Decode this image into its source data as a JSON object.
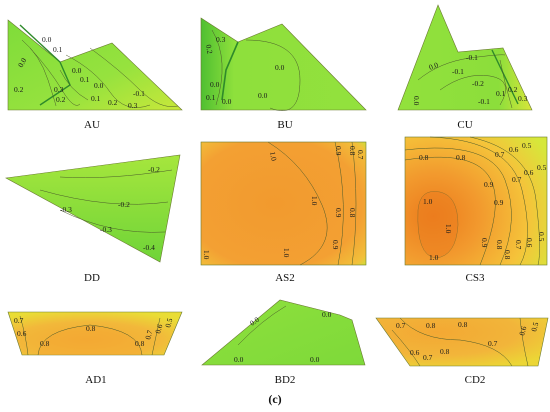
{
  "figure": {
    "caption": "(c)",
    "panels": [
      {
        "id": "AU",
        "label": "AU",
        "contour_labels": [
          "0.0",
          "0.1",
          "0.0",
          "0.2",
          "0.0",
          "0.3",
          "0.2",
          "0.1",
          "-0.1",
          "0.1",
          "0.2",
          "0.3",
          "0.0"
        ]
      },
      {
        "id": "BU",
        "label": "BU",
        "contour_labels": [
          "0.2",
          "0.3",
          "0.0",
          "0.0",
          "0.0",
          "0.1",
          "0.0"
        ]
      },
      {
        "id": "CU",
        "label": "CU",
        "contour_labels": [
          "0.0",
          "-0.1",
          "-0.1",
          "-0.2",
          "0.0",
          "-0.1",
          "0.1",
          "0.2",
          "0.3"
        ]
      },
      {
        "id": "DD",
        "label": "DD",
        "contour_labels": [
          "-0.2",
          "-0.2",
          "-0.3",
          "-0.3",
          "-0.4"
        ]
      },
      {
        "id": "AS2",
        "label": "AS2",
        "contour_labels": [
          "1.0",
          "1.0",
          "1.0",
          "0.9",
          "0.8",
          "0.9",
          "0.9",
          "0.8",
          "0.7",
          "1.0"
        ]
      },
      {
        "id": "CS3",
        "label": "CS3",
        "contour_labels": [
          "0.5",
          "0.6",
          "0.7",
          "0.8",
          "0.8",
          "0.9",
          "0.9",
          "0.7",
          "0.6",
          "0.5",
          "1.0",
          "1.0",
          "0.9",
          "0.8",
          "1.0",
          "0.8",
          "0.7",
          "0.6",
          "0.5"
        ]
      },
      {
        "id": "AD1",
        "label": "AD1",
        "contour_labels": [
          "0.7",
          "0.6",
          "0.8",
          "0.8",
          "0.8",
          "0.7",
          "0.6",
          "0.5"
        ]
      },
      {
        "id": "BD2",
        "label": "BD2",
        "contour_labels": [
          "0.0",
          "0.0",
          "0.0",
          "0.0"
        ]
      },
      {
        "id": "CD2",
        "label": "CD2",
        "contour_labels": [
          "0.7",
          "0.8",
          "0.8",
          "0.6",
          "0.7",
          "0.8",
          "0.7",
          "0.6",
          "0.5"
        ]
      }
    ]
  },
  "colors": {
    "green": "#8ee03c",
    "green_light": "#b4ec3c",
    "green_dark": "#3fb52c",
    "yellow": "#f2d52a",
    "orange_light": "#f3b43a",
    "orange": "#f29a2e",
    "orange_dark": "#ec7f1f",
    "contour": "#4a5a2a"
  }
}
